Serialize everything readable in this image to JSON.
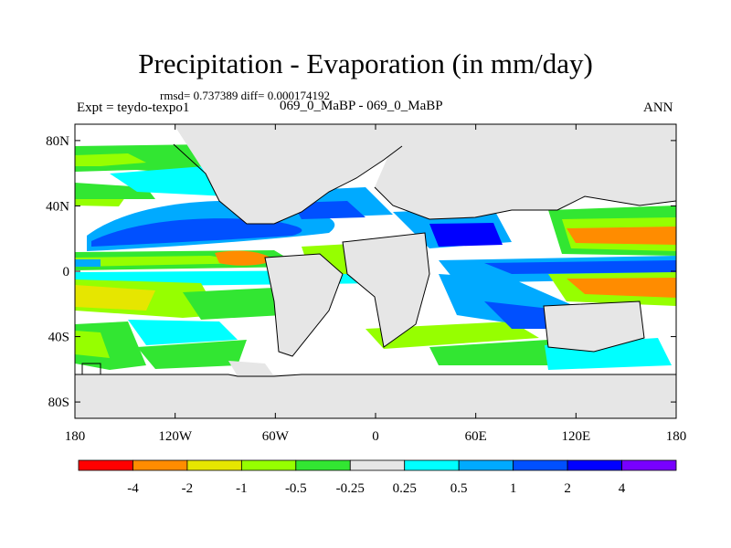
{
  "title": "Precipitation - Evaporation (in mm/day)",
  "stats_line": "rmsd= 0.737389 diff= 0.000174192",
  "experiment_label": "Expt = teydo-texpo1",
  "case_label": "069_0_MaBP - 069_0_MaBP",
  "season_label": "ANN",
  "colors": {
    "land": "#e6e6e6",
    "ocean_base": "#ffffff",
    "neg_4": "#ff0000",
    "neg_2": "#ff8c00",
    "neg_1": "#e6e600",
    "neg_05": "#96ff00",
    "neg_025": "#32e632",
    "near_zero": "#e6e6e6",
    "pos_025": "#00ffff",
    "pos_05": "#00aaff",
    "pos_1": "#0050ff",
    "pos_2": "#0000ff",
    "pos_4": "#7800ff"
  },
  "map": {
    "lon_ticks": [
      "180",
      "120W",
      "60W",
      "0",
      "60E",
      "120E",
      "180"
    ],
    "lat_ticks": [
      "80N",
      "40N",
      "0",
      "40S",
      "80S"
    ]
  },
  "colorbar": {
    "labels": [
      "-4",
      "-2",
      "-1",
      "-0.5",
      "-0.25",
      "0.25",
      "0.5",
      "1",
      "2",
      "4"
    ],
    "box_colors": [
      "#ff0000",
      "#ff8c00",
      "#e6e600",
      "#96ff00",
      "#32e632",
      "#e6e6e6",
      "#00ffff",
      "#00aaff",
      "#0050ff",
      "#0000ff",
      "#7800ff"
    ]
  }
}
